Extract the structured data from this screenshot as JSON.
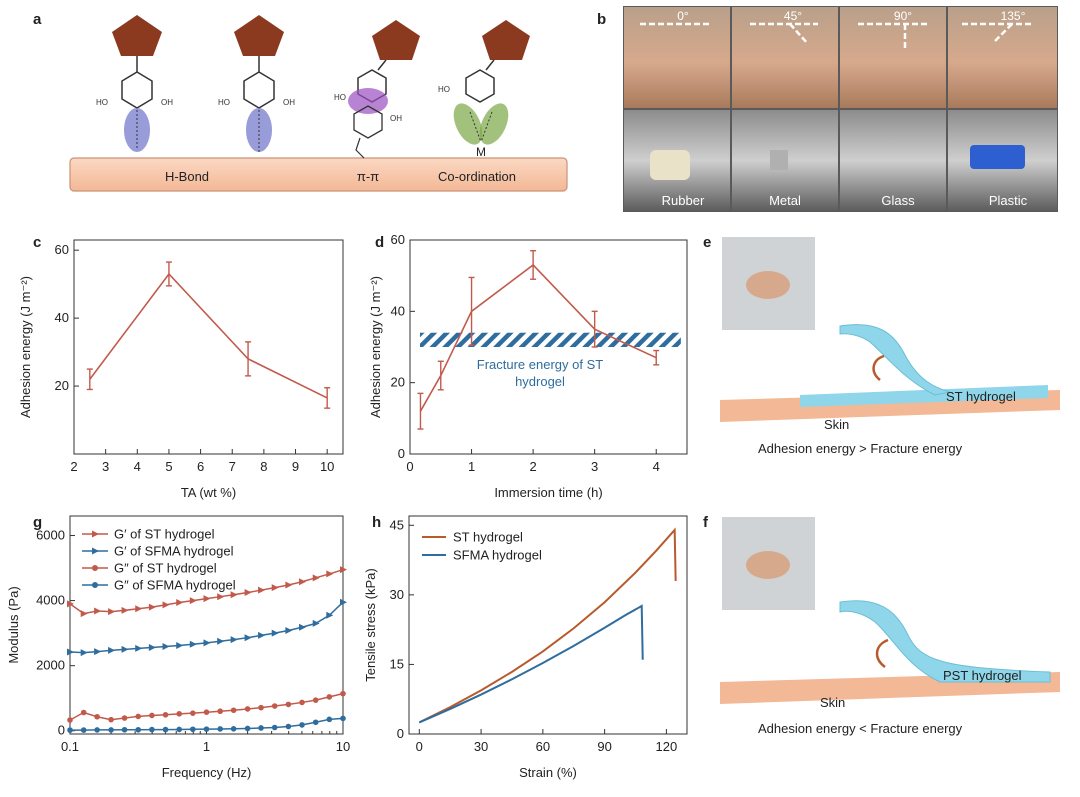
{
  "panel_letters": {
    "a": "a",
    "b": "b",
    "c": "c",
    "d": "d",
    "e": "e",
    "f": "f",
    "g": "g",
    "h": "h"
  },
  "colors": {
    "red": "#c25a4c",
    "blue": "#2f6d9e",
    "orange": "#b85a2c",
    "brown": "#8b3a20",
    "skin": "#f7c6a8",
    "hydrogel": "#8fd6ea"
  },
  "panel_a": {
    "labels": [
      "H-Bond",
      "π-π",
      "Co-ordination"
    ],
    "oh": "OH",
    "ho": "HO",
    "metal": "M"
  },
  "panel_b": {
    "angles": [
      "0°",
      "45°",
      "90°",
      "135°"
    ],
    "materials": [
      "Rubber",
      "Metal",
      "Glass",
      "Plastic"
    ]
  },
  "panel_e": {
    "hydrogel": "ST hydrogel",
    "skin": "Skin",
    "caption": "Adhesion energy > Fracture energy"
  },
  "panel_f": {
    "hydrogel": "PST hydrogel",
    "skin": "Skin",
    "caption": "Adhesion energy < Fracture energy"
  },
  "chart_data": [
    {
      "id": "c",
      "type": "line",
      "xlabel": "TA (wt %)",
      "ylabel": "Adhesion energy (J m⁻²)",
      "xlim": [
        2,
        10.5
      ],
      "ylim": [
        0,
        63
      ],
      "xticks": [
        2,
        3,
        4,
        5,
        6,
        7,
        8,
        9,
        10
      ],
      "yticks": [
        20,
        40,
        60
      ],
      "series": [
        {
          "x": [
            2.5,
            5,
            7.5,
            10
          ],
          "y": [
            22,
            53,
            28,
            16.5
          ],
          "err": [
            3,
            3.5,
            5,
            3
          ]
        }
      ]
    },
    {
      "id": "d",
      "type": "line",
      "xlabel": "Immersion time (h)",
      "ylabel": "Adhesion energy (J m⁻²)",
      "xlim": [
        0,
        4.5
      ],
      "ylim": [
        0,
        60
      ],
      "xticks": [
        0,
        1,
        2,
        3,
        4
      ],
      "yticks": [
        0,
        20,
        40,
        60
      ],
      "band": {
        "y0": 30,
        "y1": 34,
        "label_line1": "Fracture energy of ST",
        "label_line2": "hydrogel"
      },
      "series": [
        {
          "x": [
            0.17,
            0.5,
            1,
            2,
            3,
            4
          ],
          "y": [
            12,
            22,
            40,
            53,
            35,
            27
          ],
          "err": [
            5,
            4,
            9.5,
            4,
            5,
            2
          ]
        }
      ]
    },
    {
      "id": "g",
      "type": "line",
      "xlabel": "Frequency (Hz)",
      "ylabel": "Modulus (Pa)",
      "xscale": "log",
      "xlim": [
        0.1,
        10
      ],
      "ylim": [
        -100,
        6600
      ],
      "xticks": [
        0.1,
        1,
        10
      ],
      "xtick_labels": [
        "0.1",
        "1",
        "10"
      ],
      "yticks": [
        0,
        2000,
        4000,
        6000
      ],
      "legend": "top-left",
      "series": [
        {
          "name": "G′ of ST hydrogel",
          "marker": "triangle-right",
          "color": "#c25a4c",
          "x": [
            0.1,
            0.126,
            0.158,
            0.2,
            0.251,
            0.316,
            0.398,
            0.501,
            0.631,
            0.794,
            1,
            1.26,
            1.58,
            2,
            2.51,
            3.16,
            3.98,
            5.01,
            6.31,
            7.94,
            10
          ],
          "y": [
            3900,
            3600,
            3680,
            3660,
            3700,
            3750,
            3800,
            3870,
            3940,
            4000,
            4060,
            4120,
            4180,
            4250,
            4320,
            4400,
            4480,
            4580,
            4700,
            4820,
            4950
          ]
        },
        {
          "name": "G′ of SFMA hydrogel",
          "marker": "triangle-right",
          "color": "#2f6d9e",
          "x": [
            0.1,
            0.126,
            0.158,
            0.2,
            0.251,
            0.316,
            0.398,
            0.501,
            0.631,
            0.794,
            1,
            1.26,
            1.58,
            2,
            2.51,
            3.16,
            3.98,
            5.01,
            6.31,
            7.94,
            10
          ],
          "y": [
            2420,
            2400,
            2430,
            2470,
            2500,
            2530,
            2560,
            2590,
            2620,
            2660,
            2700,
            2750,
            2800,
            2860,
            2930,
            3000,
            3080,
            3180,
            3300,
            3550,
            3950
          ]
        },
        {
          "name": "G″ of ST hydrogel",
          "marker": "circle",
          "color": "#c25a4c",
          "x": [
            0.1,
            0.126,
            0.158,
            0.2,
            0.251,
            0.316,
            0.398,
            0.501,
            0.631,
            0.794,
            1,
            1.26,
            1.58,
            2,
            2.51,
            3.16,
            3.98,
            5.01,
            6.31,
            7.94,
            10
          ],
          "y": [
            330,
            560,
            430,
            340,
            390,
            440,
            470,
            490,
            520,
            540,
            570,
            600,
            630,
            670,
            710,
            760,
            810,
            870,
            940,
            1040,
            1140
          ]
        },
        {
          "name": "G″ of SFMA hydrogel",
          "marker": "circle",
          "color": "#2f6d9e",
          "x": [
            0.1,
            0.126,
            0.158,
            0.2,
            0.251,
            0.316,
            0.398,
            0.501,
            0.631,
            0.794,
            1,
            1.26,
            1.58,
            2,
            2.51,
            3.16,
            3.98,
            5.01,
            6.31,
            7.94,
            10
          ],
          "y": [
            20,
            20,
            25,
            25,
            30,
            30,
            35,
            35,
            40,
            45,
            50,
            55,
            60,
            70,
            85,
            100,
            130,
            180,
            260,
            350,
            380
          ]
        }
      ]
    },
    {
      "id": "h",
      "type": "line",
      "xlabel": "Strain (%)",
      "ylabel": "Tensile stress (kPa)",
      "xlim": [
        -5,
        130
      ],
      "ylim": [
        0,
        47
      ],
      "xticks": [
        0,
        30,
        60,
        90,
        120
      ],
      "yticks": [
        0,
        15,
        30,
        45
      ],
      "legend": "top-left",
      "series": [
        {
          "name": "ST hydrogel",
          "color": "#b85a2c",
          "x": [
            0,
            15,
            30,
            45,
            60,
            75,
            90,
            105,
            115,
            124,
            124.5
          ],
          "y": [
            2.5,
            5.8,
            9.4,
            13.4,
            17.8,
            22.8,
            28.4,
            34.8,
            39.5,
            44,
            33
          ]
        },
        {
          "name": "SFMA hydrogel",
          "color": "#2f6d9e",
          "x": [
            0,
            15,
            30,
            45,
            60,
            75,
            90,
            100,
            108,
            108.5
          ],
          "y": [
            2.5,
            5.4,
            8.5,
            11.8,
            15.3,
            19.0,
            22.9,
            25.6,
            27.6,
            16
          ]
        }
      ]
    }
  ]
}
